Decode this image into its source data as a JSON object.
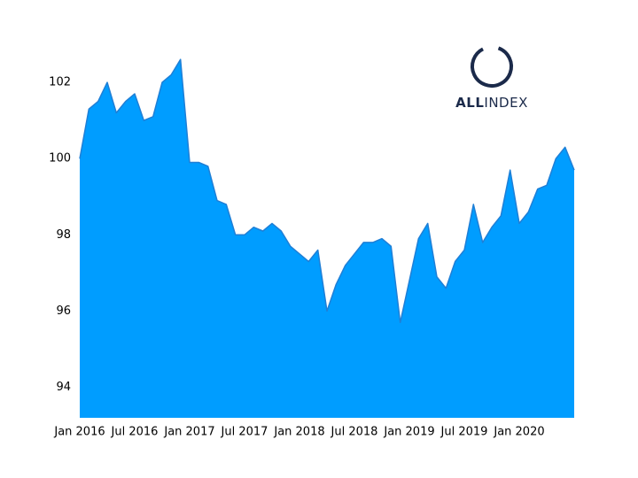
{
  "chart_data": {
    "type": "area",
    "x": [
      "2016-01",
      "2016-02",
      "2016-03",
      "2016-04",
      "2016-05",
      "2016-06",
      "2016-07",
      "2016-08",
      "2016-09",
      "2016-10",
      "2016-11",
      "2016-12",
      "2017-01",
      "2017-02",
      "2017-03",
      "2017-04",
      "2017-05",
      "2017-06",
      "2017-07",
      "2017-08",
      "2017-09",
      "2017-10",
      "2017-11",
      "2017-12",
      "2018-01",
      "2018-02",
      "2018-03",
      "2018-04",
      "2018-05",
      "2018-06",
      "2018-07",
      "2018-08",
      "2018-09",
      "2018-10",
      "2018-11",
      "2018-12",
      "2019-01",
      "2019-02",
      "2019-03",
      "2019-04",
      "2019-05",
      "2019-06",
      "2019-07",
      "2019-08",
      "2019-09",
      "2019-10",
      "2019-11",
      "2019-12",
      "2020-01",
      "2020-02",
      "2020-03",
      "2020-04",
      "2020-05",
      "2020-06",
      "2020-07"
    ],
    "values": [
      100.0,
      101.3,
      101.5,
      102.0,
      101.2,
      101.5,
      101.7,
      101.0,
      101.1,
      102.0,
      102.2,
      102.6,
      99.9,
      99.9,
      99.8,
      98.9,
      98.8,
      98.0,
      98.0,
      98.2,
      98.1,
      98.3,
      98.1,
      97.7,
      97.5,
      97.3,
      97.6,
      96.0,
      96.7,
      97.2,
      97.5,
      97.8,
      97.8,
      97.9,
      97.7,
      95.7,
      96.8,
      97.9,
      98.3,
      96.9,
      96.6,
      97.3,
      97.6,
      98.8,
      97.8,
      98.2,
      98.5,
      99.7,
      98.3,
      98.6,
      99.2,
      99.3,
      100.0,
      100.3,
      99.7
    ],
    "color": "#009dff",
    "line_color": "#1f7fd6",
    "xlim": [
      "2016-01",
      "2020-07"
    ],
    "xticks": [
      {
        "value": "2016-01",
        "label": "Jan 2016"
      },
      {
        "value": "2016-07",
        "label": "Jul 2016"
      },
      {
        "value": "2017-01",
        "label": "Jan 2017"
      },
      {
        "value": "2017-07",
        "label": "Jul 2017"
      },
      {
        "value": "2018-01",
        "label": "Jan 2018"
      },
      {
        "value": "2018-07",
        "label": "Jul 2018"
      },
      {
        "value": "2019-01",
        "label": "Jan 2019"
      },
      {
        "value": "2019-07",
        "label": "Jul 2019"
      },
      {
        "value": "2020-01",
        "label": "Jan 2020"
      }
    ],
    "ylim": [
      93.2,
      103
    ],
    "yticks": [
      94,
      96,
      98,
      100,
      102
    ],
    "grid": false
  },
  "logo": {
    "bold": "ALL",
    "rest": "INDEX"
  }
}
